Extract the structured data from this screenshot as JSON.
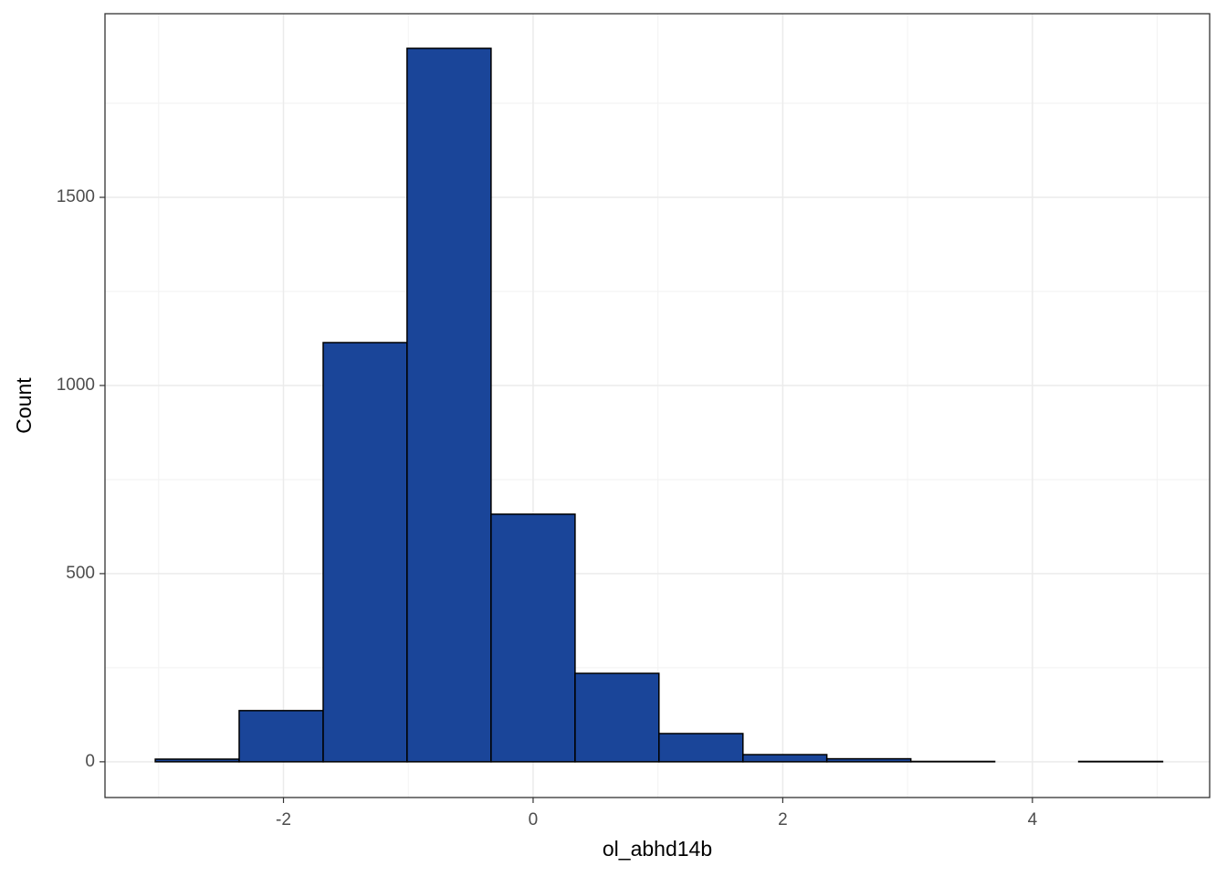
{
  "chart_data": {
    "type": "histogram",
    "x_label": "ol_abhd14b",
    "y_label": "Count",
    "bins": [
      -3.027,
      -2.355,
      -1.682,
      -1.01,
      -0.337,
      0.336,
      1.008,
      1.681,
      2.353,
      3.026,
      3.698,
      4.371,
      5.043
    ],
    "values": [
      7,
      136,
      1114,
      1896,
      658,
      235,
      75,
      19,
      8,
      1,
      0,
      1
    ],
    "color": "#1a4599",
    "edge_color": "#000000",
    "xlim": [
      -3.43,
      5.42
    ],
    "xticks": [
      -2,
      0,
      2,
      4
    ],
    "ylim": [
      -95,
      1988
    ],
    "yticks": [
      0,
      500,
      1000,
      1500
    ],
    "grid": true
  }
}
